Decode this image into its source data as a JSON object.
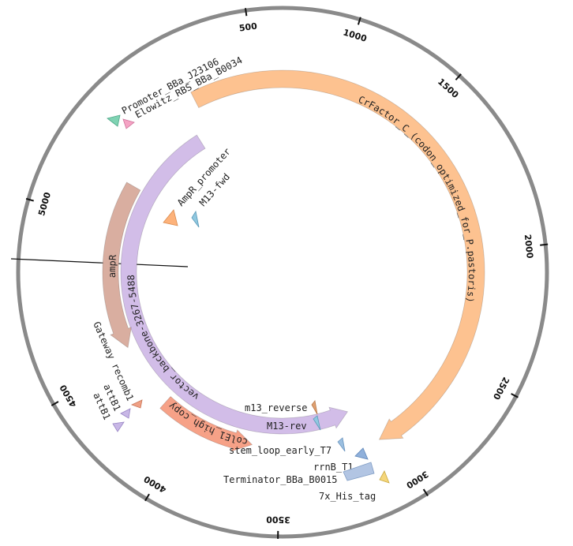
{
  "map": {
    "backbone_color": "#8a8a8a",
    "ticks": [
      {
        "value": "500",
        "angle": -8
      },
      {
        "value": "1000",
        "angle": 17
      },
      {
        "value": "1500",
        "angle": 42
      },
      {
        "value": "2000",
        "angle": 84
      },
      {
        "value": "2500",
        "angle": 118
      },
      {
        "value": "3000",
        "angle": 147
      },
      {
        "value": "3500",
        "angle": 181
      },
      {
        "value": "4000",
        "angle": 211
      },
      {
        "value": "4500",
        "angle": 240
      },
      {
        "value": "5000",
        "angle": 286
      }
    ],
    "features": [
      {
        "name": "CrFactor_C_(codon_optimized_for_P.pastoris)",
        "type": "arc",
        "start": -27,
        "end": 150,
        "radius": 245,
        "width": 22,
        "color": "#fdc290",
        "direction": "cw",
        "label_mode": "curved",
        "label_radius": 236
      },
      {
        "name": "vector_backbone-3267-5488",
        "type": "arc",
        "start": 155,
        "end": 328,
        "radius": 195,
        "width": 20,
        "color": "#d2bde8",
        "direction": "ccw",
        "label_mode": "curved",
        "label_radius": 188
      },
      {
        "name": "ampR",
        "type": "arc",
        "start": 244,
        "end": 300,
        "radius": 218,
        "width": 20,
        "color": "#d9aea0",
        "direction": "ccw",
        "label_mode": "curved",
        "label_radius": 212
      },
      {
        "name": "colE1_high_copy",
        "type": "arc",
        "start": 190,
        "end": 222,
        "radius": 222,
        "width": 20,
        "color": "#f6a187",
        "direction": "ccw",
        "label_mode": "curved",
        "label_radius": 216
      },
      {
        "name": "Promoter_BBa_J23106",
        "type": "marker",
        "angle": -35,
        "radius": 262,
        "color": "#7fd3b3"
      },
      {
        "name": "Elowitz_RBS_BBa_B0034",
        "type": "marker",
        "angle": -31,
        "radius": 248,
        "color": "#f5a3c4"
      },
      {
        "name": "AmpR_promoter",
        "type": "marker",
        "angle": -22,
        "radius": 130,
        "color": "#fdb27a"
      },
      {
        "name": "M13-fwd",
        "type": "marker",
        "angle": -12,
        "radius": 110,
        "color": "#90c8e0"
      },
      {
        "name": "m13_reverse",
        "type": "marker",
        "angle": 148,
        "radius": 215,
        "color": "#e0a070"
      },
      {
        "name": "M13-rev",
        "type": "marker",
        "angle": 146,
        "radius": 200,
        "color": "#90c8e0"
      },
      {
        "name": "stem_loop_early_T7",
        "type": "marker",
        "angle": 150,
        "radius": 240,
        "color": "#9bbfe0"
      },
      {
        "name": "rrnB_T1",
        "type": "marker",
        "angle": 151,
        "radius": 262,
        "color": "#8fb0db"
      },
      {
        "name": "Terminator_BBa_B0015",
        "type": "marker",
        "angle": 160,
        "radius": 252,
        "color": "#b2c5e3"
      },
      {
        "name": "7x_His_tag",
        "type": "marker",
        "angle": 149,
        "radius": 285,
        "color": "#f5d67a"
      },
      {
        "name": "Gateway recomb1",
        "type": "marker",
        "angle": 234,
        "radius": 238,
        "color": "#f0a085"
      },
      {
        "name": "attB1",
        "type": "marker",
        "angle": 235,
        "radius": 225,
        "color": "#c8b7e6"
      },
      {
        "name": "attB1",
        "type": "marker",
        "angle": 231,
        "radius": 252,
        "color": "#c8b7e6"
      }
    ]
  }
}
